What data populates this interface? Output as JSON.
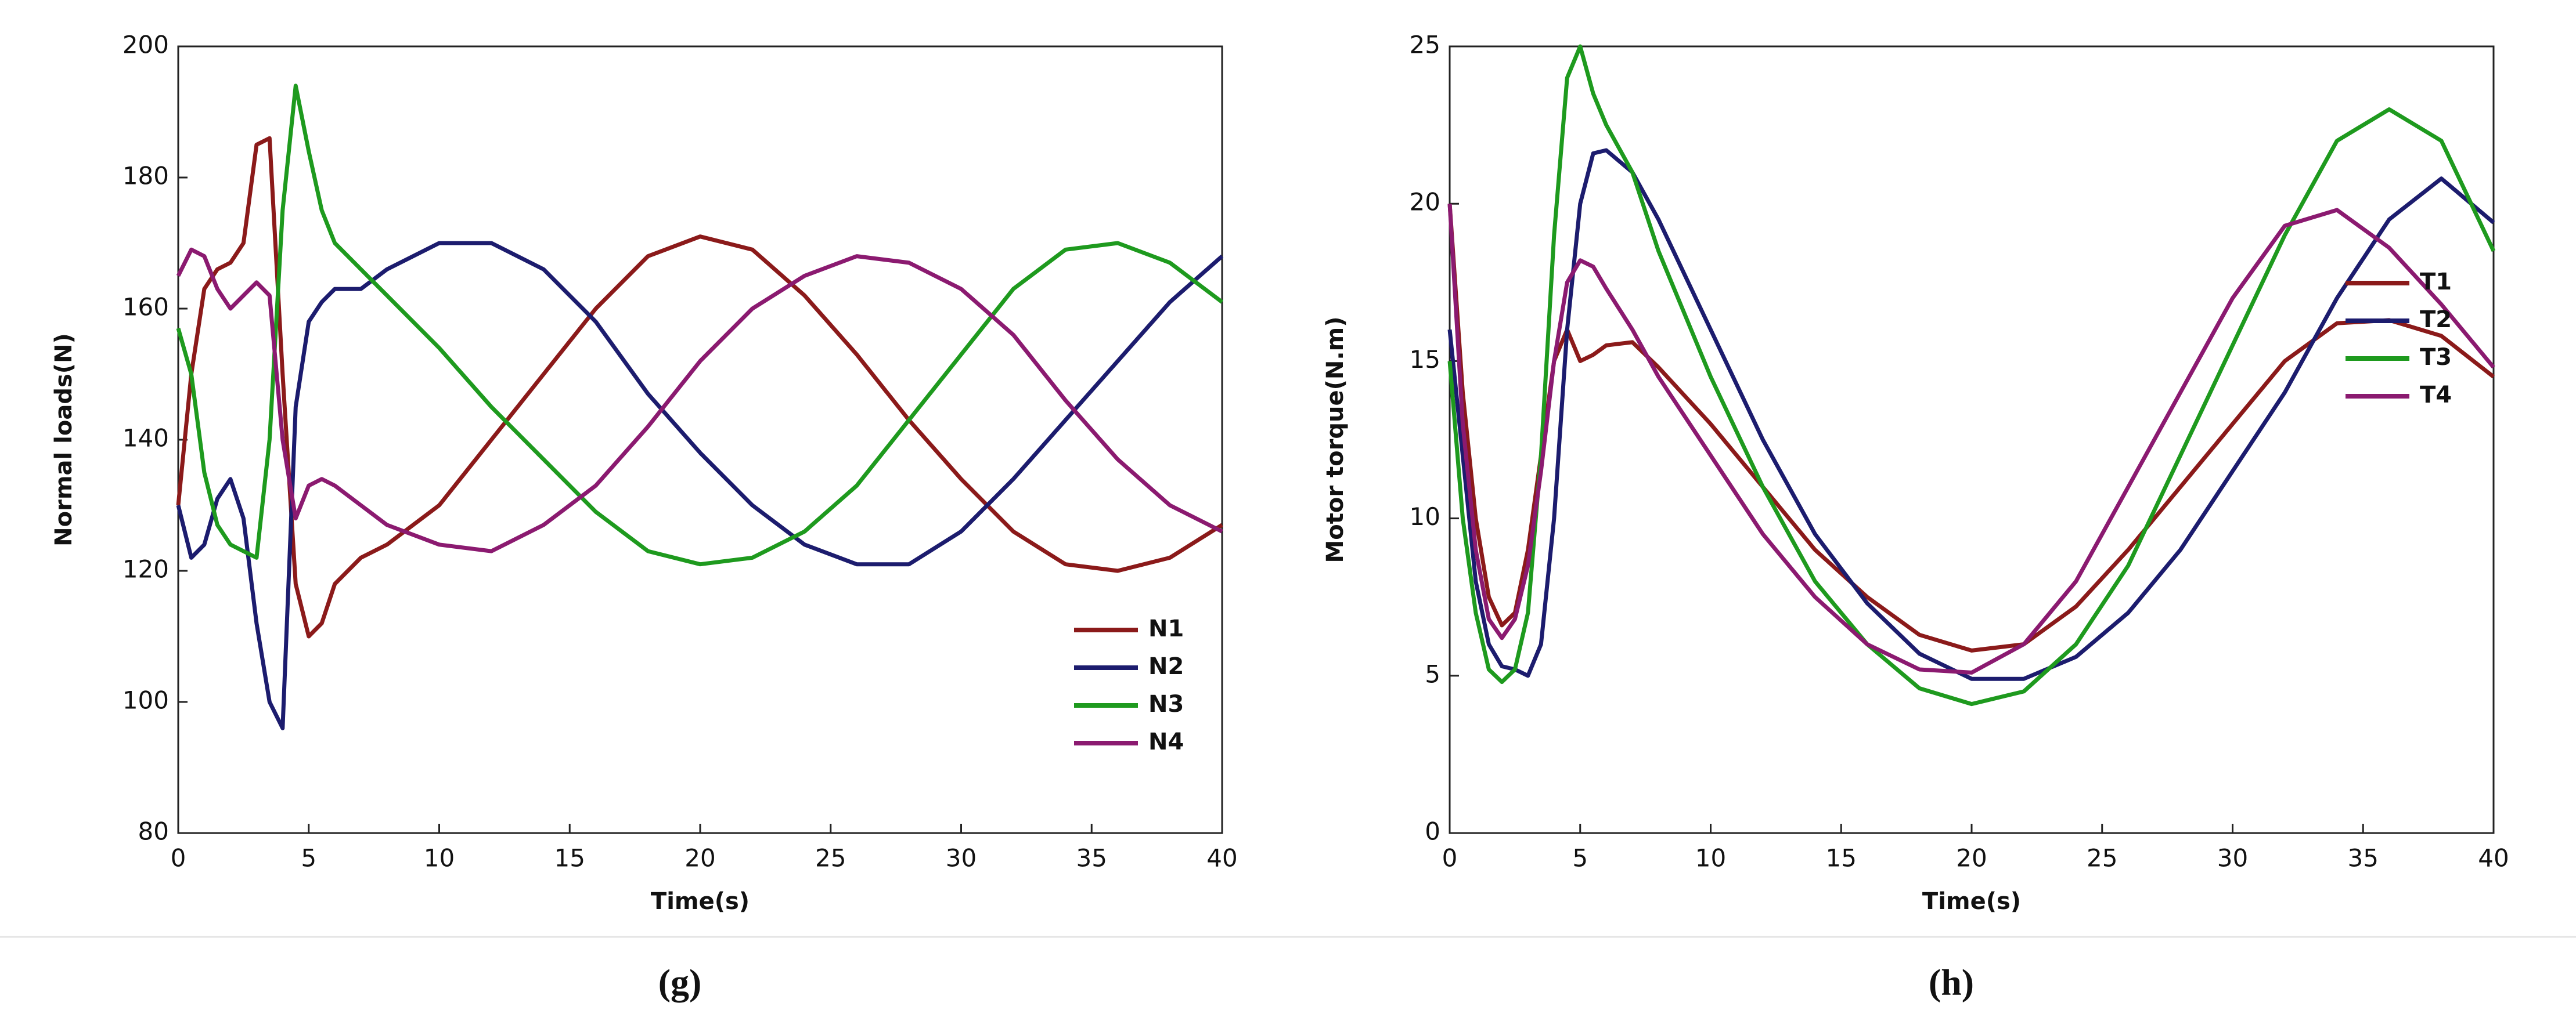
{
  "chart_data": [
    {
      "type": "line",
      "caption": "(g)",
      "xlabel": "Time(s)",
      "ylabel": "Normal loads(N)",
      "x": [
        0,
        0.5,
        1,
        1.5,
        2,
        2.5,
        3,
        3.5,
        4,
        4.5,
        5,
        5.5,
        6,
        7,
        8,
        10,
        12,
        14,
        16,
        18,
        20,
        22,
        24,
        26,
        28,
        30,
        32,
        34,
        36,
        38,
        40
      ],
      "series": [
        {
          "name": "N1",
          "color": "#8b1a1a",
          "values": [
            130,
            150,
            163,
            166,
            167,
            170,
            185,
            186,
            150,
            118,
            110,
            112,
            118,
            122,
            124,
            130,
            140,
            150,
            160,
            168,
            171,
            169,
            162,
            153,
            143,
            134,
            126,
            121,
            120,
            122,
            127
          ]
        },
        {
          "name": "N2",
          "color": "#1c1c6e",
          "values": [
            130,
            122,
            124,
            131,
            134,
            128,
            112,
            100,
            96,
            145,
            158,
            161,
            163,
            163,
            166,
            170,
            170,
            166,
            158,
            147,
            138,
            130,
            124,
            121,
            121,
            126,
            134,
            143,
            152,
            161,
            168
          ]
        },
        {
          "name": "N3",
          "color": "#1e9a1e",
          "values": [
            157,
            150,
            135,
            127,
            124,
            123,
            122,
            140,
            175,
            194,
            184,
            175,
            170,
            166,
            162,
            154,
            145,
            137,
            129,
            123,
            121,
            122,
            126,
            133,
            143,
            153,
            163,
            169,
            170,
            167,
            161
          ]
        },
        {
          "name": "N4",
          "color": "#8b1a70",
          "values": [
            165,
            169,
            168,
            163,
            160,
            162,
            164,
            162,
            140,
            128,
            133,
            134,
            133,
            130,
            127,
            124,
            123,
            127,
            133,
            142,
            152,
            160,
            165,
            168,
            167,
            163,
            156,
            146,
            137,
            130,
            126
          ]
        }
      ],
      "xlim": [
        0,
        40
      ],
      "ylim": [
        80,
        200
      ],
      "xticks": [
        0,
        5,
        10,
        15,
        20,
        25,
        30,
        35,
        40
      ],
      "yticks": [
        80,
        100,
        120,
        140,
        160,
        180,
        200
      ],
      "grid": false,
      "legend_loc": "lower right"
    },
    {
      "type": "line",
      "caption": "(h)",
      "xlabel": "Time(s)",
      "ylabel": "Motor torque(N.m)",
      "x": [
        0,
        0.5,
        1,
        1.5,
        2,
        2.5,
        3,
        3.5,
        4,
        4.5,
        5,
        5.5,
        6,
        7,
        8,
        10,
        12,
        14,
        16,
        18,
        20,
        22,
        24,
        26,
        28,
        30,
        32,
        34,
        36,
        38,
        40
      ],
      "series": [
        {
          "name": "T1",
          "color": "#8b1a1a",
          "values": [
            20,
            14,
            10,
            7.5,
            6.6,
            7,
            9,
            12,
            15,
            16,
            15,
            15.2,
            15.5,
            15.6,
            14.8,
            13,
            11,
            9,
            7.5,
            6.3,
            5.8,
            6,
            7.2,
            9,
            11,
            13,
            15,
            16.2,
            16.3,
            15.8,
            14.5
          ]
        },
        {
          "name": "T2",
          "color": "#1c1c6e",
          "values": [
            16,
            12,
            8,
            6,
            5.3,
            5.2,
            5,
            6,
            10,
            16,
            20,
            21.6,
            21.7,
            21,
            19.5,
            16,
            12.5,
            9.5,
            7.3,
            5.7,
            4.9,
            4.9,
            5.6,
            7,
            9,
            11.5,
            14,
            17,
            19.5,
            20.8,
            19.4
          ]
        },
        {
          "name": "T3",
          "color": "#1e9a1e",
          "values": [
            15,
            10,
            7,
            5.2,
            4.8,
            5.2,
            7,
            12,
            19,
            24,
            25,
            23.5,
            22.5,
            21,
            18.5,
            14.5,
            11,
            8,
            6,
            4.6,
            4.1,
            4.5,
            6,
            8.5,
            12,
            15.5,
            19,
            22,
            23,
            22,
            18.5
          ]
        },
        {
          "name": "T4",
          "color": "#8b1a70",
          "values": [
            20,
            13,
            9,
            6.8,
            6.2,
            6.8,
            8.5,
            11.5,
            15,
            17.5,
            18.2,
            18,
            17.3,
            16,
            14.5,
            12,
            9.5,
            7.5,
            6,
            5.2,
            5.1,
            6,
            8,
            11,
            14,
            17,
            19.3,
            19.8,
            18.6,
            16.8,
            14.8
          ]
        }
      ],
      "xlim": [
        0,
        40
      ],
      "ylim": [
        0,
        25
      ],
      "xticks": [
        0,
        5,
        10,
        15,
        20,
        25,
        30,
        35,
        40
      ],
      "yticks": [
        0,
        5,
        10,
        15,
        20,
        25
      ],
      "grid": false,
      "legend_loc": "center right"
    }
  ]
}
